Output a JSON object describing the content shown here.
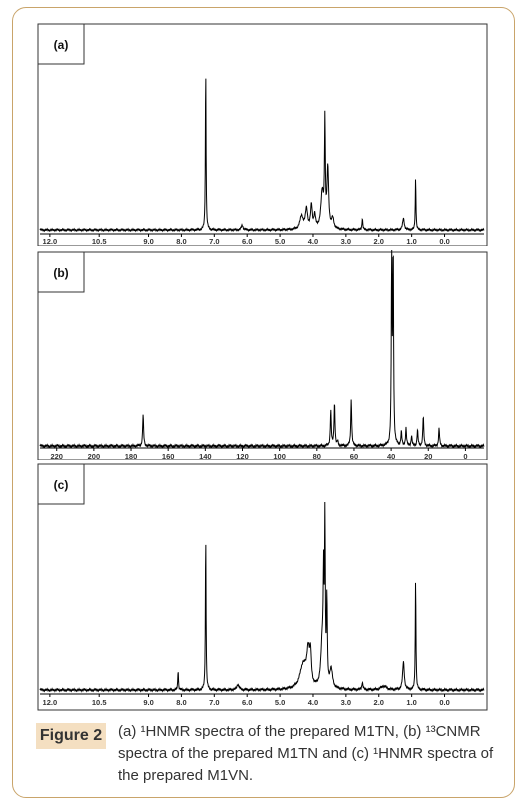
{
  "figure": {
    "label": "Figure 2",
    "caption": "(a) ¹HNMR spectra of the prepared M1TN, (b) ¹³CNMR spectra of the prepared M1TN and (c) ¹HNMR spectra of the prepared M1VN."
  },
  "colors": {
    "frame": "#c9a46a",
    "caption_bg": "#f4dfc1"
  },
  "chart_data": [
    {
      "type": "line",
      "panel_label": "(a)",
      "x_ticks": [
        "12.0",
        "10.5",
        "9.0",
        "8.0",
        "7.0",
        "6.0",
        "5.0",
        "4.0",
        "3.0",
        "2.0",
        "1.0",
        "0.0"
      ],
      "x_tick_values": [
        12.0,
        10.5,
        9.0,
        8.0,
        7.0,
        6.0,
        5.0,
        4.0,
        3.0,
        2.0,
        1.0,
        0.0
      ],
      "xlim": [
        12.3,
        -1.2
      ],
      "ylim": [
        0,
        1
      ],
      "peaks": [
        {
          "x": 7.26,
          "h": 0.98,
          "w": 0.012
        },
        {
          "x": 6.15,
          "h": 0.03,
          "w": 0.03
        },
        {
          "x": 4.35,
          "h": 0.08,
          "w": 0.06
        },
        {
          "x": 4.2,
          "h": 0.12,
          "w": 0.04
        },
        {
          "x": 4.05,
          "h": 0.14,
          "w": 0.03
        },
        {
          "x": 3.95,
          "h": 0.08,
          "w": 0.03
        },
        {
          "x": 3.72,
          "h": 0.22,
          "w": 0.05
        },
        {
          "x": 3.64,
          "h": 0.62,
          "w": 0.015
        },
        {
          "x": 3.55,
          "h": 0.36,
          "w": 0.03
        },
        {
          "x": 3.4,
          "h": 0.06,
          "w": 0.04
        },
        {
          "x": 2.5,
          "h": 0.07,
          "w": 0.015
        },
        {
          "x": 1.25,
          "h": 0.07,
          "w": 0.03
        },
        {
          "x": 0.88,
          "h": 0.32,
          "w": 0.012
        }
      ]
    },
    {
      "type": "line",
      "panel_label": "(b)",
      "x_ticks": [
        "220",
        "200",
        "180",
        "160",
        "140",
        "120",
        "100",
        "80",
        "60",
        "40",
        "20",
        "0"
      ],
      "x_tick_values": [
        220,
        200,
        180,
        160,
        140,
        120,
        100,
        80,
        60,
        40,
        20,
        0
      ],
      "xlim": [
        229,
        -10
      ],
      "ylim": [
        0,
        1
      ],
      "peaks": [
        {
          "x": 173.5,
          "h": 0.16,
          "w": 0.3
        },
        {
          "x": 72.5,
          "h": 0.18,
          "w": 0.3
        },
        {
          "x": 70.5,
          "h": 0.22,
          "w": 0.3
        },
        {
          "x": 68.8,
          "h": 0.02,
          "w": 0.3
        },
        {
          "x": 61.5,
          "h": 0.24,
          "w": 0.3
        },
        {
          "x": 39.7,
          "h": 1.0,
          "w": 0.25
        },
        {
          "x": 38.9,
          "h": 0.97,
          "w": 0.25
        },
        {
          "x": 34.5,
          "h": 0.07,
          "w": 0.3
        },
        {
          "x": 32.0,
          "h": 0.09,
          "w": 0.3
        },
        {
          "x": 29.0,
          "h": 0.05,
          "w": 0.3
        },
        {
          "x": 25.8,
          "h": 0.08,
          "w": 0.3
        },
        {
          "x": 22.7,
          "h": 0.15,
          "w": 0.3
        },
        {
          "x": 14.2,
          "h": 0.09,
          "w": 0.3
        }
      ]
    },
    {
      "type": "line",
      "panel_label": "(c)",
      "x_ticks": [
        "12.0",
        "10.5",
        "9.0",
        "8.0",
        "7.0",
        "6.0",
        "5.0",
        "4.0",
        "3.0",
        "2.0",
        "1.0",
        "0.0"
      ],
      "x_tick_values": [
        12.0,
        10.5,
        9.0,
        8.0,
        7.0,
        6.0,
        5.0,
        4.0,
        3.0,
        2.0,
        1.0,
        0.0
      ],
      "xlim": [
        12.3,
        -1.2
      ],
      "ylim": [
        0,
        1
      ],
      "peaks": [
        {
          "x": 8.1,
          "h": 0.11,
          "w": 0.012
        },
        {
          "x": 7.26,
          "h": 0.83,
          "w": 0.012
        },
        {
          "x": 6.28,
          "h": 0.03,
          "w": 0.04
        },
        {
          "x": 4.3,
          "h": 0.13,
          "w": 0.12
        },
        {
          "x": 4.15,
          "h": 0.18,
          "w": 0.05
        },
        {
          "x": 4.08,
          "h": 0.15,
          "w": 0.03
        },
        {
          "x": 3.72,
          "h": 0.25,
          "w": 0.05
        },
        {
          "x": 3.68,
          "h": 0.5,
          "w": 0.015
        },
        {
          "x": 3.64,
          "h": 0.95,
          "w": 0.012
        },
        {
          "x": 3.58,
          "h": 0.45,
          "w": 0.015
        },
        {
          "x": 3.45,
          "h": 0.1,
          "w": 0.05
        },
        {
          "x": 2.5,
          "h": 0.04,
          "w": 0.02
        },
        {
          "x": 1.85,
          "h": 0.02,
          "w": 0.1
        },
        {
          "x": 1.25,
          "h": 0.15,
          "w": 0.03
        },
        {
          "x": 0.88,
          "h": 0.6,
          "w": 0.012
        }
      ]
    }
  ]
}
